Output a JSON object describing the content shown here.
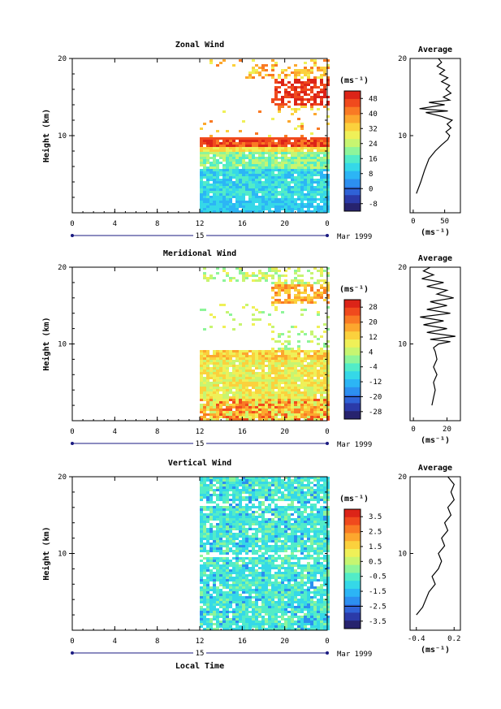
{
  "shared": {
    "height_label": "Height (km)",
    "y_ticks": [
      10,
      20
    ],
    "x_ticks": [
      "0",
      "4",
      "8",
      "12",
      "16",
      "20",
      "0"
    ],
    "day_label": "15",
    "date_label": "Mar 1999",
    "x_axis_title": "Local Time",
    "colorbar_unit": "(ms⁻¹)",
    "profile_title": "Average",
    "profile_unit": "(ms⁻¹)",
    "palette": [
      "#27236e",
      "#2b3aa8",
      "#2f62d6",
      "#2c8ff0",
      "#2cb5f5",
      "#35d8e8",
      "#52ecc8",
      "#8ef59a",
      "#c7f571",
      "#eff058",
      "#fbd13d",
      "#fca72e",
      "#f97a24",
      "#f04a1d",
      "#dc2418"
    ]
  },
  "chart_data": [
    {
      "type": "heatmap",
      "title": "Zonal Wind",
      "ylim": [
        0,
        20
      ],
      "xlim_hours": [
        0,
        24
      ],
      "data_start_hour": 12,
      "colorbar_labels": [
        "48",
        "40",
        "32",
        "24",
        "16",
        "8",
        "0",
        "-8"
      ],
      "profile": {
        "title": "Average",
        "x_ticks": [
          "0",
          "50"
        ],
        "xlim": [
          -5,
          75
        ],
        "points": [
          [
            5,
            2.5
          ],
          [
            12,
            4
          ],
          [
            18,
            5.5
          ],
          [
            25,
            7
          ],
          [
            35,
            8
          ],
          [
            45,
            8.8
          ],
          [
            55,
            9.5
          ],
          [
            58,
            10
          ],
          [
            52,
            10.5
          ],
          [
            60,
            11
          ],
          [
            54,
            11.5
          ],
          [
            62,
            12
          ],
          [
            45,
            12.5
          ],
          [
            20,
            13
          ],
          [
            55,
            13.2
          ],
          [
            10,
            13.5
          ],
          [
            50,
            14
          ],
          [
            25,
            14.3
          ],
          [
            58,
            14.6
          ],
          [
            48,
            15
          ],
          [
            60,
            15.5
          ],
          [
            52,
            16
          ],
          [
            58,
            16.5
          ],
          [
            45,
            17
          ],
          [
            55,
            17.5
          ],
          [
            42,
            18
          ],
          [
            50,
            18.5
          ],
          [
            38,
            19
          ],
          [
            45,
            19.5
          ],
          [
            40,
            20
          ]
        ]
      }
    },
    {
      "type": "heatmap",
      "title": "Meridional Wind",
      "ylim": [
        0,
        20
      ],
      "xlim_hours": [
        0,
        24
      ],
      "data_start_hour": 12,
      "colorbar_labels": [
        "28",
        "20",
        "12",
        "4",
        "-4",
        "-12",
        "-20",
        "-28"
      ],
      "profile": {
        "title": "Average",
        "x_ticks": [
          "0",
          "20"
        ],
        "xlim": [
          -2,
          28
        ],
        "points": [
          [
            11,
            2
          ],
          [
            12,
            3
          ],
          [
            13,
            4
          ],
          [
            12,
            5
          ],
          [
            14,
            6
          ],
          [
            12,
            7
          ],
          [
            14,
            8
          ],
          [
            13,
            9
          ],
          [
            12,
            9.5
          ],
          [
            15,
            10
          ],
          [
            22,
            10.3
          ],
          [
            10,
            10.6
          ],
          [
            25,
            11
          ],
          [
            8,
            11.5
          ],
          [
            20,
            12
          ],
          [
            6,
            12.5
          ],
          [
            18,
            13
          ],
          [
            4,
            13.5
          ],
          [
            22,
            14
          ],
          [
            8,
            14.5
          ],
          [
            20,
            15
          ],
          [
            10,
            15.5
          ],
          [
            24,
            16
          ],
          [
            14,
            16.5
          ],
          [
            20,
            17
          ],
          [
            8,
            17.5
          ],
          [
            18,
            18
          ],
          [
            5,
            18.5
          ],
          [
            12,
            19
          ],
          [
            6,
            19.5
          ],
          [
            10,
            20
          ]
        ]
      }
    },
    {
      "type": "heatmap",
      "title": "Vertical Wind",
      "ylim": [
        0,
        20
      ],
      "xlim_hours": [
        0,
        24
      ],
      "data_start_hour": 12,
      "colorbar_labels": [
        "3.5",
        "2.5",
        "1.5",
        "0.5",
        "-0.5",
        "-1.5",
        "-2.5",
        "-3.5"
      ],
      "profile": {
        "title": "Average",
        "x_ticks": [
          "-0.4",
          "0.2"
        ],
        "xlim": [
          -0.5,
          0.3
        ],
        "points": [
          [
            -0.4,
            2
          ],
          [
            -0.3,
            3
          ],
          [
            -0.25,
            4
          ],
          [
            -0.2,
            5
          ],
          [
            -0.1,
            6
          ],
          [
            -0.15,
            7
          ],
          [
            -0.05,
            8
          ],
          [
            0.0,
            9
          ],
          [
            -0.05,
            10
          ],
          [
            0.05,
            11
          ],
          [
            0.0,
            12
          ],
          [
            0.1,
            13
          ],
          [
            0.05,
            14
          ],
          [
            0.15,
            15
          ],
          [
            0.1,
            16
          ],
          [
            0.2,
            17
          ],
          [
            0.15,
            18
          ],
          [
            0.2,
            19
          ],
          [
            0.1,
            20
          ]
        ]
      }
    }
  ]
}
